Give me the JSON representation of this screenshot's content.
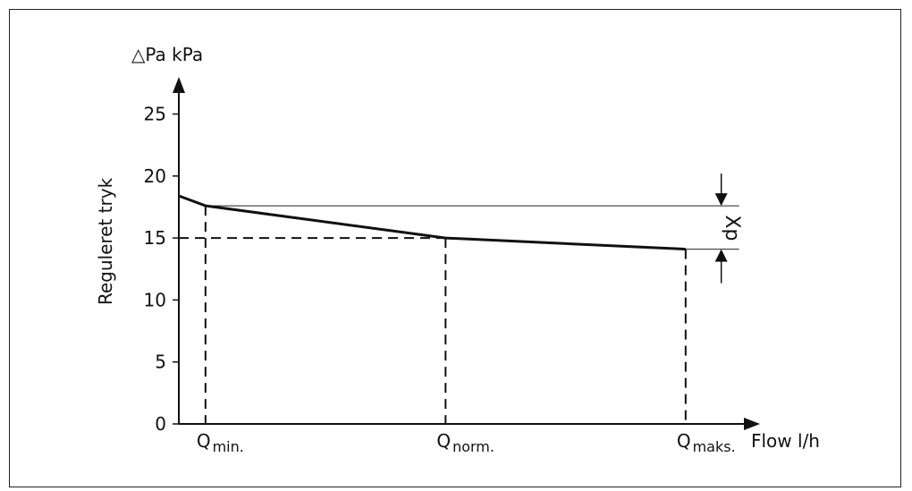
{
  "chart_data": {
    "type": "line",
    "ylabel": "Reguleret tryk",
    "yunit": "△Pa  kPa",
    "xlabel": "Flow  l/h",
    "ylim": [
      0,
      27
    ],
    "yticks": [
      0,
      5,
      10,
      15,
      20,
      25
    ],
    "xlim": [
      0,
      1.2
    ],
    "series": [
      {
        "x": [
          0.0,
          0.05,
          0.5,
          0.95
        ],
        "y": [
          18.4,
          17.6,
          15.0,
          14.1
        ]
      }
    ],
    "reference_levels": [
      17.6,
      15.0,
      14.1
    ],
    "markers": [
      {
        "main": "Q",
        "sub": "min.",
        "x": 0.05,
        "y": 17.6
      },
      {
        "main": "Q",
        "sub": "norm.",
        "x": 0.5,
        "y": 15.0
      },
      {
        "main": "Q",
        "sub": "maks.",
        "x": 0.95,
        "y": 14.1
      }
    ],
    "xp_label": "Xp",
    "grid": false,
    "legend": "none"
  }
}
